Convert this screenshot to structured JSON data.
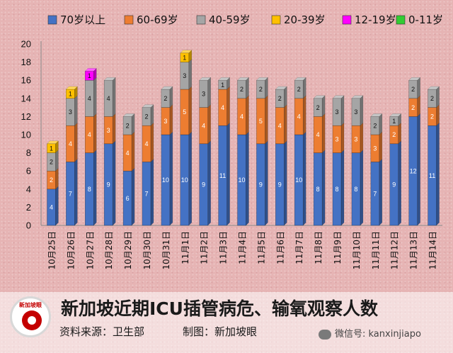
{
  "chart_data": {
    "type": "bar",
    "stacked": true,
    "title": "新加坡近期ICU插管病危、输氧观察人数",
    "categories": [
      "10月25日",
      "10月26日",
      "10月27日",
      "10月28日",
      "10月29日",
      "10月30日",
      "10月31日",
      "11月1日",
      "11月2日",
      "11月3日",
      "11月4日",
      "11月5日",
      "11月6日",
      "11月7日",
      "11月8日",
      "11月9日",
      "11月10日",
      "11月11日",
      "11月12日",
      "11月13日",
      "11月14日"
    ],
    "series": [
      {
        "name": "70岁以上",
        "color": "#4472c4",
        "values": [
          4,
          7,
          8,
          9,
          6,
          7,
          10,
          10,
          9,
          11,
          10,
          9,
          9,
          10,
          8,
          8,
          8,
          7,
          9,
          12,
          11
        ]
      },
      {
        "name": "60-69岁",
        "color": "#ed7d31",
        "values": [
          2,
          4,
          4,
          3,
          4,
          4,
          3,
          5,
          4,
          4,
          4,
          5,
          4,
          4,
          4,
          3,
          3,
          3,
          2,
          2,
          2
        ]
      },
      {
        "name": "40-59岁",
        "color": "#a5a5a5",
        "values": [
          2,
          3,
          4,
          4,
          2,
          2,
          2,
          3,
          3,
          1,
          2,
          2,
          2,
          2,
          2,
          3,
          3,
          2,
          1,
          2,
          2
        ]
      },
      {
        "name": "20-39岁",
        "color": "#ffc000",
        "values": [
          1,
          1,
          0,
          0,
          0,
          0,
          0,
          1,
          0,
          0,
          0,
          0,
          0,
          0,
          0,
          0,
          0,
          0,
          0,
          0,
          0
        ]
      },
      {
        "name": "12-19岁",
        "color": "#ff00ff",
        "values": [
          0,
          0,
          1,
          0,
          0,
          0,
          0,
          0,
          0,
          0,
          0,
          0,
          0,
          0,
          0,
          0,
          0,
          0,
          0,
          0,
          0
        ]
      },
      {
        "name": "0-11岁",
        "color": "#33cc33",
        "values": [
          0,
          0,
          0,
          0,
          0,
          0,
          0,
          0,
          0,
          0,
          0,
          0,
          0,
          0,
          0,
          0,
          0,
          0,
          0,
          0,
          0
        ]
      }
    ],
    "ylim": [
      0,
      20
    ],
    "yticks": [
      0,
      2,
      4,
      6,
      8,
      10,
      12,
      14,
      16,
      18,
      20
    ],
    "legend": "top",
    "grid": false
  },
  "footer": {
    "title": "新加坡近期ICU插管病危、输氧观察人数",
    "source": "资料来源：卫生部",
    "credit": "制图：新加坡眼",
    "wechat": "微信号: kanxinjiapo",
    "logo_text": "新加坡眼"
  }
}
